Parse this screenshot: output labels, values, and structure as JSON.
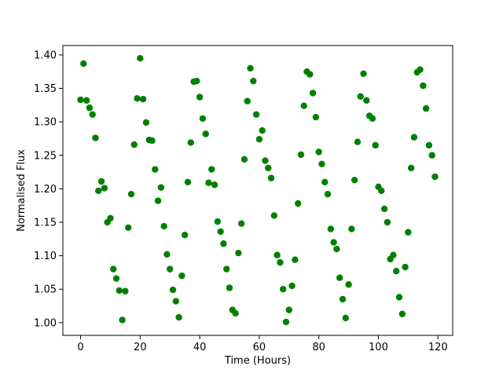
{
  "chart_data": {
    "type": "scatter",
    "xlabel": "Time (Hours)",
    "ylabel": "Normalised Flux",
    "color": "#008000",
    "x": [
      0,
      1,
      2,
      3,
      4,
      5,
      6,
      7,
      8,
      9,
      10,
      11,
      12,
      13,
      14,
      15,
      16,
      17,
      18,
      19,
      20,
      21,
      22,
      23,
      24,
      25,
      26,
      27,
      28,
      29,
      30,
      31,
      32,
      33,
      34,
      35,
      36,
      37,
      38,
      39,
      40,
      41,
      42,
      43,
      44,
      45,
      46,
      47,
      48,
      49,
      50,
      51,
      52,
      53,
      54,
      55,
      56,
      57,
      58,
      59,
      60,
      61,
      62,
      63,
      64,
      65,
      66,
      67,
      68,
      69,
      70,
      71,
      72,
      73,
      74,
      75,
      76,
      77,
      78,
      79,
      80,
      81,
      82,
      83,
      84,
      85,
      86,
      87,
      88,
      89,
      90,
      91,
      92,
      93,
      94,
      95,
      96,
      97,
      98,
      99,
      100,
      101,
      102,
      103,
      104,
      105,
      106,
      107,
      108,
      109,
      110,
      111,
      112,
      113,
      114,
      115,
      116,
      117,
      118,
      119
    ],
    "values": [
      1.333,
      1.387,
      1.332,
      1.321,
      1.311,
      1.276,
      1.197,
      1.211,
      1.201,
      1.15,
      1.156,
      1.08,
      1.066,
      1.048,
      1.004,
      1.047,
      1.142,
      1.192,
      1.266,
      1.335,
      1.395,
      1.334,
      1.299,
      1.273,
      1.272,
      1.229,
      1.182,
      1.202,
      1.144,
      1.102,
      1.08,
      1.049,
      1.032,
      1.008,
      1.07,
      1.131,
      1.21,
      1.269,
      1.36,
      1.361,
      1.337,
      1.305,
      1.282,
      1.209,
      1.229,
      1.206,
      1.151,
      1.136,
      1.118,
      1.08,
      1.052,
      1.019,
      1.014,
      1.104,
      1.148,
      1.244,
      1.331,
      1.38,
      1.361,
      1.311,
      1.274,
      1.287,
      1.242,
      1.231,
      1.216,
      1.16,
      1.101,
      1.09,
      1.05,
      1.001,
      1.019,
      1.055,
      1.094,
      1.178,
      1.251,
      1.324,
      1.375,
      1.371,
      1.343,
      1.307,
      1.255,
      1.237,
      1.21,
      1.192,
      1.14,
      1.12,
      1.11,
      1.067,
      1.035,
      1.007,
      1.057,
      1.14,
      1.213,
      1.27,
      1.338,
      1.372,
      1.332,
      1.309,
      1.305,
      1.265,
      1.203,
      1.197,
      1.17,
      1.15,
      1.095,
      1.101,
      1.077,
      1.038,
      1.013,
      1.083,
      1.135,
      1.231,
      1.277,
      1.374,
      1.378,
      1.354,
      1.32,
      1.265,
      1.25,
      1.218
    ],
    "xlim": [
      -5.95,
      124.95
    ],
    "ylim": [
      0.981,
      1.414
    ],
    "xticks": [
      0,
      20,
      40,
      60,
      80,
      100,
      120
    ],
    "yticks": [
      {
        "value": 1.0,
        "label": "1.00"
      },
      {
        "value": 1.05,
        "label": "1.05"
      },
      {
        "value": 1.1,
        "label": "1.10"
      },
      {
        "value": 1.15,
        "label": "1.15"
      },
      {
        "value": 1.2,
        "label": "1.20"
      },
      {
        "value": 1.25,
        "label": "1.25"
      },
      {
        "value": 1.3,
        "label": "1.30"
      },
      {
        "value": 1.35,
        "label": "1.35"
      },
      {
        "value": 1.4,
        "label": "1.40"
      }
    ]
  }
}
